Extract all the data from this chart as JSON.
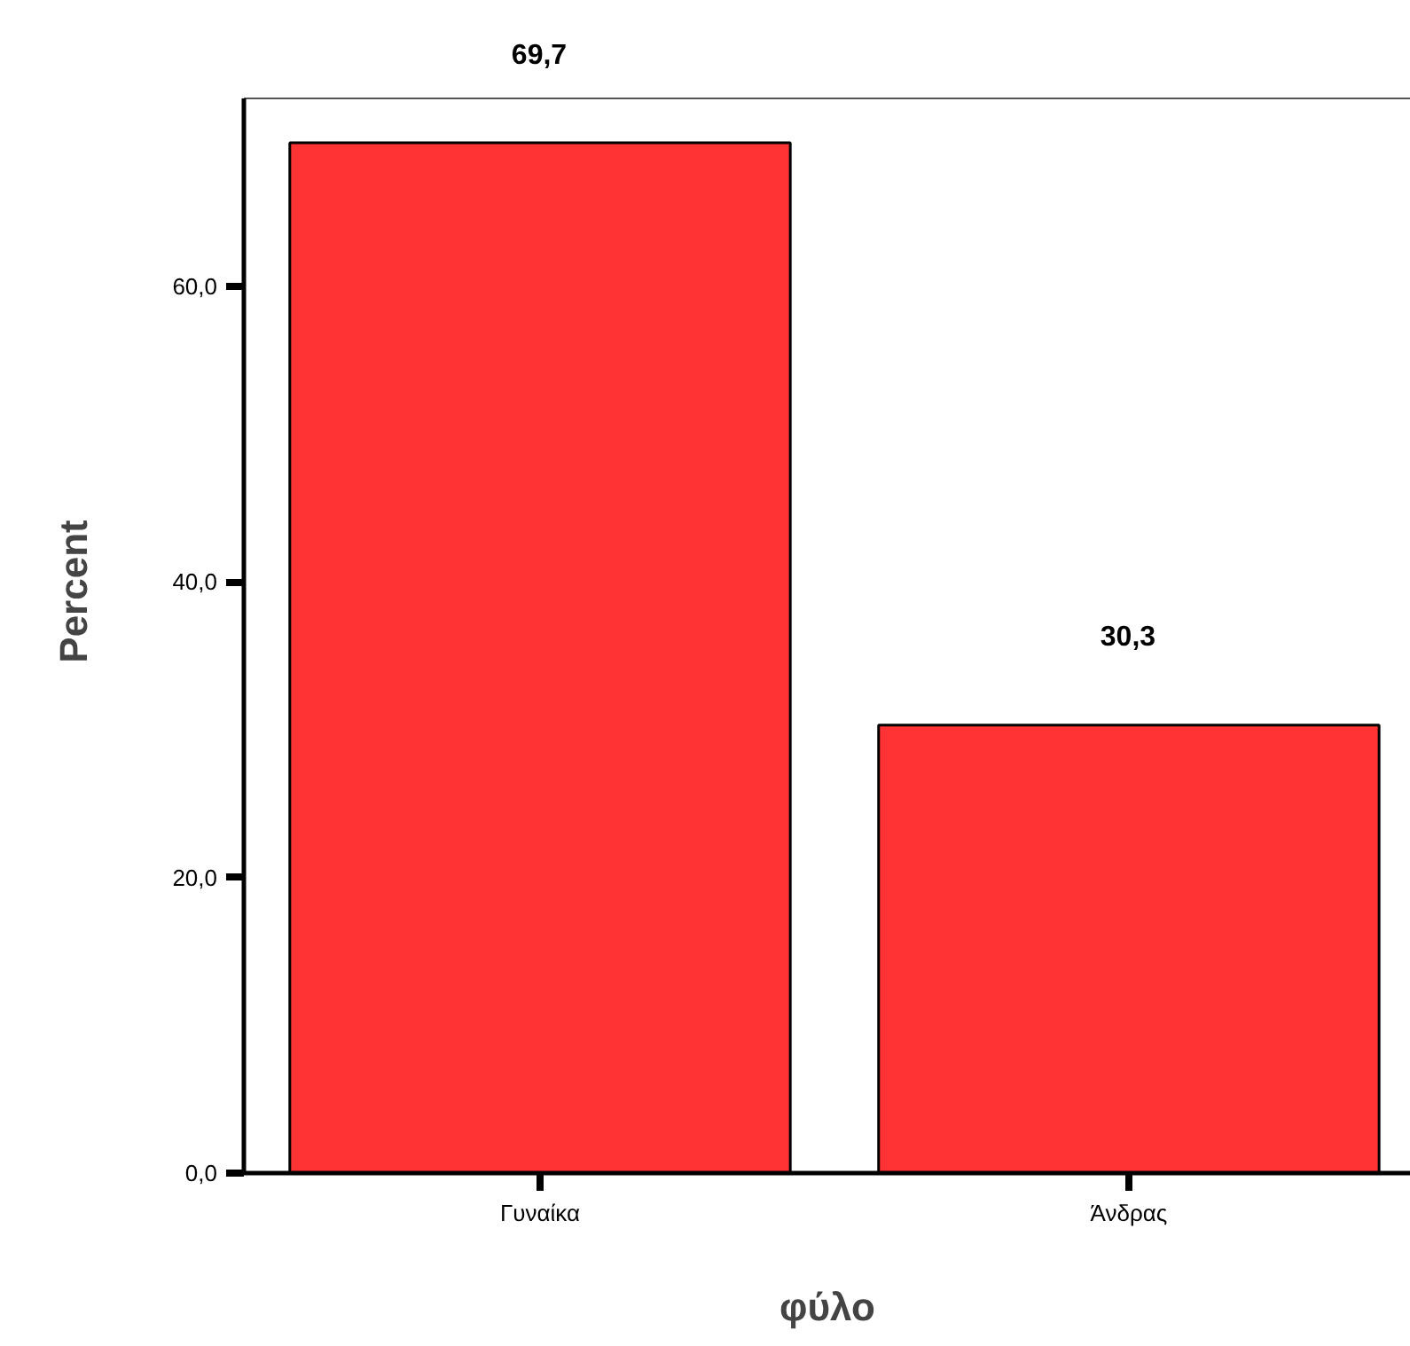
{
  "chart_data": {
    "type": "bar",
    "xlabel": "φύλο",
    "ylabel": "Percent",
    "categories": [
      "Γυναίκα",
      "Άνδρας"
    ],
    "values": [
      69.7,
      30.3
    ],
    "color": "#ff3333",
    "value_labels": [
      "69,7",
      "30,3"
    ],
    "ylim": [
      0,
      72.7
    ],
    "yticks": [
      {
        "value": 0,
        "label": "0,0"
      },
      {
        "value": 20,
        "label": "20,0"
      },
      {
        "value": 40,
        "label": "40,0"
      },
      {
        "value": 60,
        "label": "60,0"
      }
    ],
    "grid": false
  }
}
